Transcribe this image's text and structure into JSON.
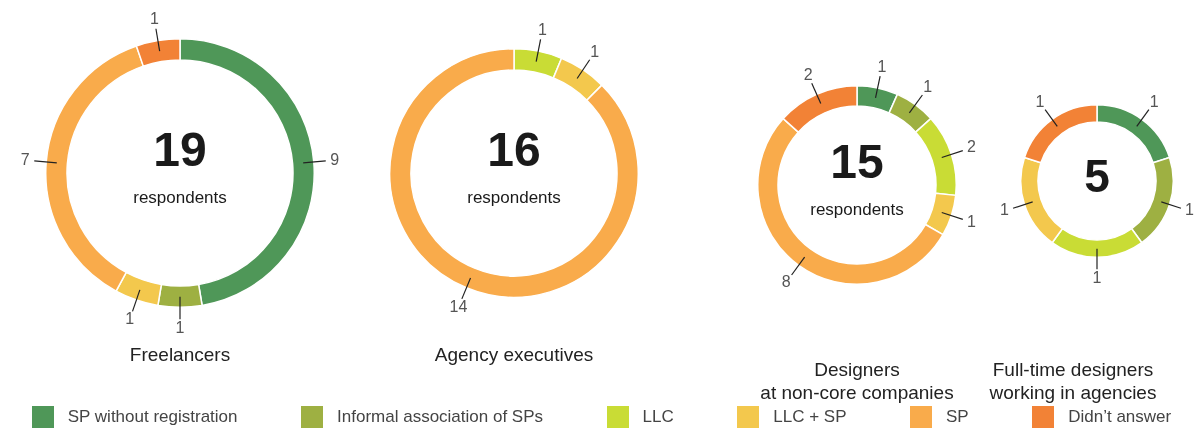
{
  "chart_data": [
    {
      "type": "donut",
      "title": "Freelancers",
      "annotations": [
        "19",
        "respondents"
      ],
      "categories": [
        "SP without registration",
        "Informal association of SPs",
        "LLC",
        "LLC + SP",
        "SP",
        "Didn’t answer"
      ],
      "values": [
        9,
        1,
        0,
        1,
        7,
        1
      ],
      "colors": [
        "#4f9758",
        "#9eb042",
        "#c9dc35",
        "#f3c84d",
        "#f9ab4b",
        "#f28236"
      ],
      "data_labels": true,
      "legend": "bottom"
    },
    {
      "type": "donut",
      "title": "Agency executives",
      "annotations": [
        "16",
        "respondents"
      ],
      "values": [
        0,
        0,
        1,
        1,
        14,
        0
      ],
      "colors": [
        "#4f9758",
        "#9eb042",
        "#c9dc35",
        "#f3c84d",
        "#f9ab4b",
        "#f28236"
      ],
      "data_labels": true
    },
    {
      "type": "donut",
      "title": "Designers\nat non-core companies",
      "annotations": [
        "15",
        "respondents"
      ],
      "values": [
        1,
        1,
        2,
        1,
        8,
        2
      ],
      "colors": [
        "#4f9758",
        "#9eb042",
        "#c9dc35",
        "#f3c84d",
        "#f9ab4b",
        "#f28236"
      ],
      "data_labels": true
    },
    {
      "type": "donut",
      "title": "Full-time designers\nworking in agencies",
      "annotations": [
        "5"
      ],
      "values": [
        1,
        1,
        1,
        1,
        0,
        1
      ],
      "colors": [
        "#4f9758",
        "#9eb042",
        "#c9dc35",
        "#f3c84d",
        "#f9ab4b",
        "#f28236"
      ],
      "data_labels": true
    }
  ]
}
